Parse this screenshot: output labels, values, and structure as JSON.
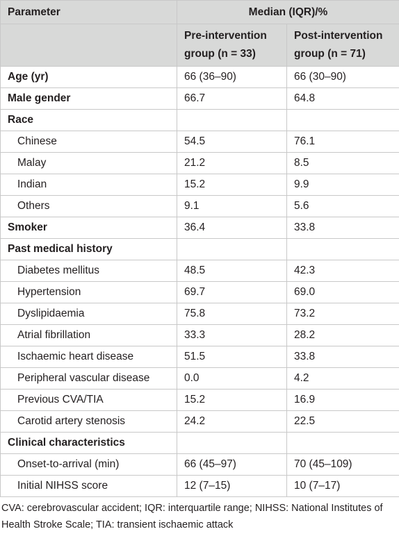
{
  "table": {
    "header": {
      "parameter": "Parameter",
      "median": "Median (IQR)/%",
      "groups": [
        "Pre-intervention group (n = 33)",
        "Post-intervention group (n = 71)"
      ]
    },
    "rows": [
      {
        "label": "Age (yr)",
        "values": [
          "66 (36–90)",
          "66 (30–90)"
        ]
      },
      {
        "label": "Male gender",
        "values": [
          "66.7",
          "64.8"
        ]
      },
      {
        "label": "Race",
        "rows": [
          {
            "label": "Chinese",
            "values": [
              "54.5",
              "76.1"
            ]
          },
          {
            "label": "Malay",
            "values": [
              "21.2",
              "8.5"
            ]
          },
          {
            "label": "Indian",
            "values": [
              "15.2",
              "9.9"
            ]
          },
          {
            "label": "Others",
            "values": [
              "9.1",
              "5.6"
            ]
          }
        ]
      },
      {
        "label": "Smoker",
        "values": [
          "36.4",
          "33.8"
        ]
      },
      {
        "label": "Past medical history",
        "rows": [
          {
            "label": "Diabetes mellitus",
            "values": [
              "48.5",
              "42.3"
            ]
          },
          {
            "label": "Hypertension",
            "values": [
              "69.7",
              "69.0"
            ]
          },
          {
            "label": "Dyslipidaemia",
            "values": [
              "75.8",
              "73.2"
            ]
          },
          {
            "label": "Atrial fibrillation",
            "values": [
              "33.3",
              "28.2"
            ]
          },
          {
            "label": "Ischaemic heart disease",
            "values": [
              "51.5",
              "33.8"
            ]
          },
          {
            "label": "Peripheral vascular disease",
            "values": [
              "0.0",
              "4.2"
            ]
          },
          {
            "label": "Previous CVA/TIA",
            "values": [
              "15.2",
              "16.9"
            ]
          },
          {
            "label": "Carotid artery stenosis",
            "values": [
              "24.2",
              "22.5"
            ]
          }
        ]
      },
      {
        "label": "Clinical characteristics",
        "rows": [
          {
            "label": "Onset-to-arrival (min)",
            "values": [
              "66 (45–97)",
              "70 (45–109)"
            ]
          },
          {
            "label": "Initial NIHSS score",
            "values": [
              "12 (7–15)",
              "10 (7–17)"
            ]
          }
        ]
      }
    ],
    "footnote": "CVA: cerebrovascular accident; IQR: interquartile range; NIHSS: National Institutes of Health Stroke Scale; TIA: transient ischaemic attack"
  }
}
